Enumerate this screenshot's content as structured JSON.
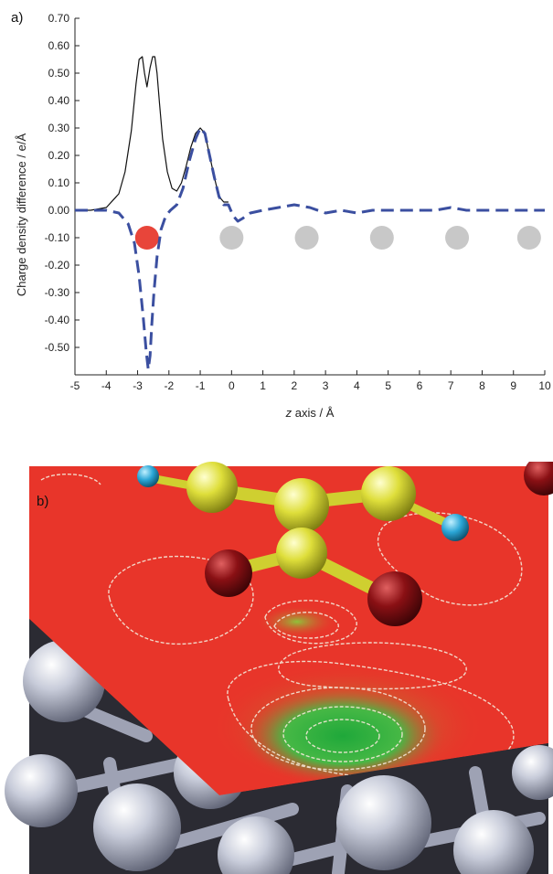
{
  "chart_data": {
    "type": "line",
    "panel_label": "a)",
    "xlabel_italic": "z",
    "xlabel_rest": " axis / Å",
    "ylabel": "Charge density difference / e/Å",
    "xlim": [
      -5,
      10
    ],
    "ylim": [
      -0.6,
      0.7
    ],
    "xticks": [
      "-5",
      "-4",
      "-3",
      "-2",
      "-1",
      "0",
      "1",
      "2",
      "3",
      "4",
      "5",
      "6",
      "7",
      "8",
      "9",
      "10"
    ],
    "yticks": [
      "0.70",
      "0.60",
      "0.50",
      "0.40",
      "0.30",
      "0.20",
      "0.10",
      "0.00",
      "-0.10",
      "-0.20",
      "-0.30",
      "-0.40",
      "-0.50"
    ],
    "grid": false,
    "series": [
      {
        "style": "solid",
        "color": "#111111",
        "x": [
          -5.0,
          -4.5,
          -4.0,
          -3.6,
          -3.4,
          -3.2,
          -3.05,
          -2.95,
          -2.85,
          -2.78,
          -2.7,
          -2.6,
          -2.52,
          -2.45,
          -2.38,
          -2.3,
          -2.2,
          -2.05,
          -1.9,
          -1.75,
          -1.6,
          -1.45,
          -1.3,
          -1.15,
          -1.0,
          -0.85,
          -0.7,
          -0.55,
          -0.4,
          -0.25,
          -0.1
        ],
        "y": [
          0.0,
          0.0,
          0.01,
          0.06,
          0.14,
          0.29,
          0.46,
          0.55,
          0.56,
          0.5,
          0.45,
          0.52,
          0.56,
          0.56,
          0.5,
          0.39,
          0.26,
          0.14,
          0.08,
          0.07,
          0.1,
          0.16,
          0.23,
          0.28,
          0.3,
          0.28,
          0.2,
          0.12,
          0.05,
          0.03,
          0.03
        ]
      },
      {
        "style": "dashed",
        "color": "#3b4fa0",
        "x": [
          -5.0,
          -4.5,
          -4.0,
          -3.6,
          -3.3,
          -3.1,
          -2.95,
          -2.82,
          -2.72,
          -2.66,
          -2.6,
          -2.55,
          -2.48,
          -2.38,
          -2.25,
          -2.1,
          -1.95,
          -1.75,
          -1.55,
          -1.35,
          -1.15,
          -1.0,
          -0.85,
          -0.7,
          -0.55,
          -0.4,
          -0.25,
          -0.1,
          0.05,
          0.2,
          0.35,
          0.6,
          1.0,
          1.5,
          2.0,
          2.5,
          3.0,
          3.5,
          4.0,
          4.5,
          5.0,
          5.5,
          6.0,
          6.5,
          7.0,
          7.5,
          8.0,
          8.5,
          9.0,
          9.5,
          10.0
        ],
        "y": [
          0.0,
          0.0,
          0.0,
          -0.01,
          -0.05,
          -0.12,
          -0.24,
          -0.39,
          -0.52,
          -0.58,
          -0.53,
          -0.42,
          -0.3,
          -0.17,
          -0.07,
          -0.02,
          0.0,
          0.02,
          0.08,
          0.18,
          0.26,
          0.3,
          0.28,
          0.2,
          0.12,
          0.05,
          0.02,
          0.02,
          -0.02,
          -0.04,
          -0.03,
          -0.01,
          0.0,
          0.01,
          0.02,
          0.01,
          -0.01,
          0.0,
          -0.01,
          0.0,
          0.0,
          0.0,
          0.0,
          0.0,
          0.01,
          0.0,
          0.0,
          0.0,
          0.0,
          0.0,
          0.0
        ]
      }
    ],
    "markers": [
      {
        "x": -2.7,
        "y": -0.1,
        "color": "#e8453a"
      },
      {
        "x": 0.0,
        "y": -0.1,
        "color": "#c8c8c8"
      },
      {
        "x": 2.4,
        "y": -0.1,
        "color": "#c8c8c8"
      },
      {
        "x": 4.8,
        "y": -0.1,
        "color": "#c8c8c8"
      },
      {
        "x": 7.2,
        "y": -0.1,
        "color": "#c8c8c8"
      },
      {
        "x": 9.5,
        "y": -0.1,
        "color": "#c8c8c8"
      }
    ]
  },
  "panel_b": {
    "label": "b)",
    "plane_color": "#e8352a",
    "highlight_color": "#36b34a",
    "carbon_color": "#dede3a",
    "hydrogen_color": "#2ba6d6",
    "oxygen_color": "#8a1014",
    "substrate_color": "#b8bccc"
  }
}
